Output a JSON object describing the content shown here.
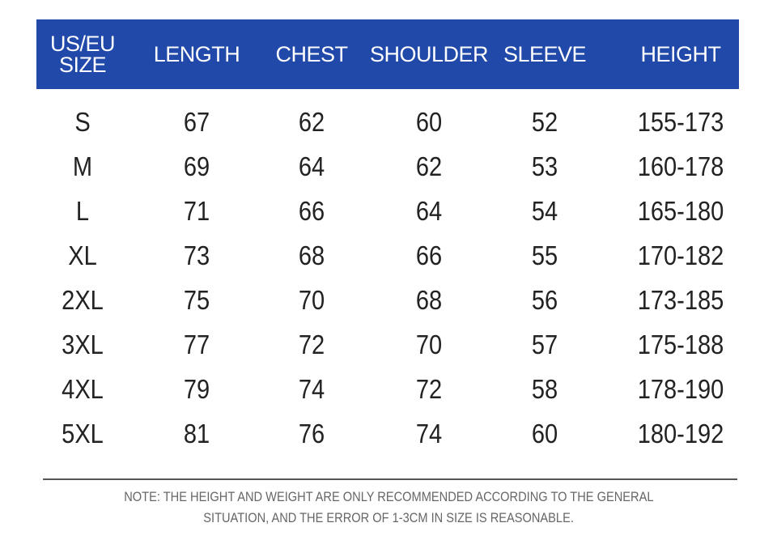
{
  "header_color": "#2049a9",
  "columns": [
    "US/EU\nSIZE",
    "LENGTH",
    "CHEST",
    "SHOULDER",
    "SLEEVE",
    "HEIGHT"
  ],
  "header_size_line1": "US/EU",
  "header_size_line2": "SIZE",
  "rows": [
    [
      "S",
      "67",
      "62",
      "60",
      "52",
      "155-173"
    ],
    [
      "M",
      "69",
      "64",
      "62",
      "53",
      "160-178"
    ],
    [
      "L",
      "71",
      "66",
      "64",
      "54",
      "165-180"
    ],
    [
      "XL",
      "73",
      "68",
      "66",
      "55",
      "170-182"
    ],
    [
      "2XL",
      "75",
      "70",
      "68",
      "56",
      "173-185"
    ],
    [
      "3XL",
      "77",
      "72",
      "70",
      "57",
      "175-188"
    ],
    [
      "4XL",
      "79",
      "74",
      "72",
      "58",
      "178-190"
    ],
    [
      "5XL",
      "81",
      "76",
      "74",
      "60",
      "180-192"
    ]
  ],
  "note": {
    "line1": "NOTE: THE HEIGHT AND WEIGHT ARE ONLY RECOMMENDED ACCORDING TO THE GENERAL",
    "line2": "SITUATION, AND THE ERROR OF 1-3CM IN SIZE IS REASONABLE."
  }
}
